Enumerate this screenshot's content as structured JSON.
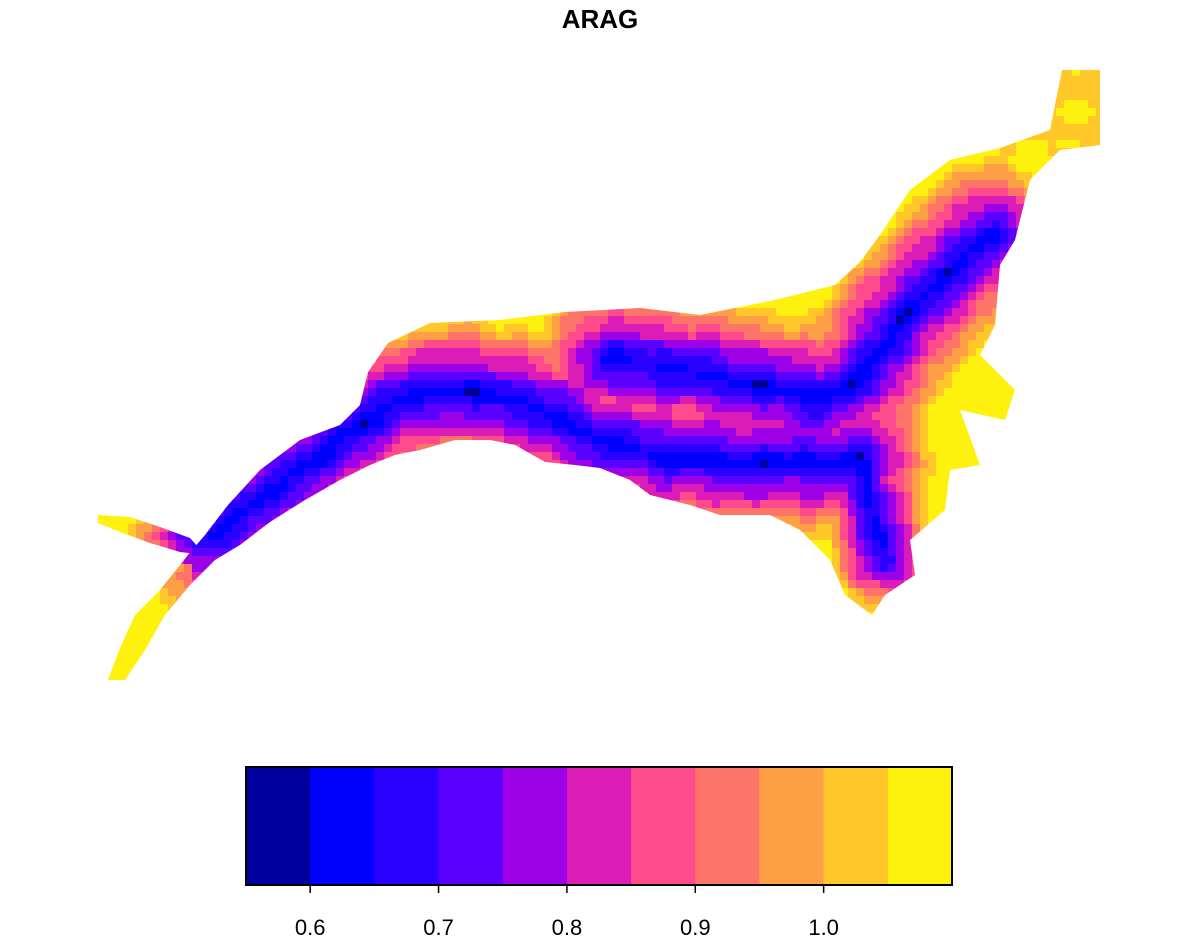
{
  "chart_data": {
    "type": "heatmap",
    "title": "ARAG",
    "legend": {
      "placement": "bottom",
      "breaks": [
        0.55,
        0.6,
        0.65,
        0.7,
        0.75,
        0.8,
        0.85,
        0.9,
        0.95,
        1.0,
        1.05,
        1.1
      ],
      "colors": [
        "#00009F",
        "#0000FF",
        "#2A00FF",
        "#5A00FF",
        "#9B00E6",
        "#DB1CB6",
        "#FF4B8C",
        "#FF7468",
        "#FF9F45",
        "#FFC72A",
        "#FFF10E"
      ],
      "tick_values": [
        0.6,
        0.7,
        0.8,
        0.9,
        1.0
      ],
      "tick_labels": [
        "0.6",
        "0.7",
        "0.8",
        "0.9",
        "1.0"
      ]
    }
  }
}
